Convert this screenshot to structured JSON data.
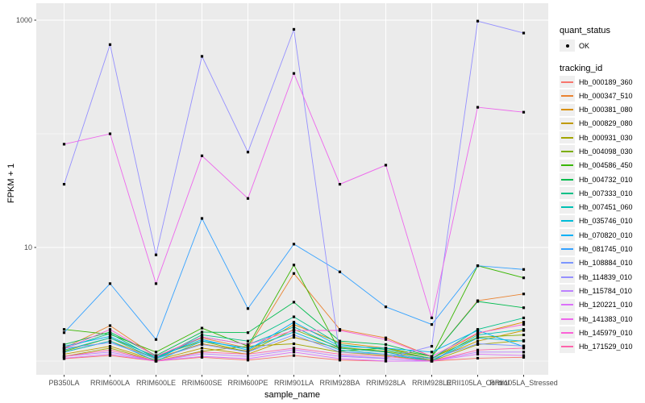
{
  "chart_data": {
    "type": "line",
    "xlabel": "sample_name",
    "ylabel": "FPKM + 1",
    "y_scale": "log10",
    "y_ticks": [
      10,
      1000
    ],
    "y_minor_gridlines": [
      1,
      100
    ],
    "ylim_log10": [
      -0.12,
      3.15
    ],
    "grid": "on",
    "legend_position": "right",
    "panel_bg": "#EBEBEB",
    "grid_color": "#FFFFFF",
    "point_color": "#000000",
    "tick_label_color": "#4D4D4D",
    "categories": [
      "PB350LA",
      "RRIM600LA",
      "RRIM600LE",
      "RRIM600SE",
      "RRIM600PE",
      "RRIM901LA",
      "RRIM928BA",
      "RRIM928LA",
      "RRIM928LE",
      "RRII105LA_Control",
      "RRII105LA_Stressed"
    ],
    "series": [
      {
        "name": "Hb_000189_360",
        "color": "#F8766D",
        "values": [
          1.05,
          1.12,
          1.0,
          1.08,
          1.02,
          1.12,
          1.02,
          1.0,
          1.0,
          1.06,
          1.08
        ]
      },
      {
        "name": "Hb_000347_510",
        "color": "#EA8331",
        "values": [
          1.3,
          2.05,
          1.1,
          1.6,
          1.3,
          5.9,
          1.9,
          1.6,
          1.1,
          3.4,
          3.9
        ]
      },
      {
        "name": "Hb_000381_080",
        "color": "#D89000",
        "values": [
          1.2,
          1.5,
          1.06,
          1.42,
          1.22,
          2.1,
          1.45,
          1.3,
          1.05,
          1.75,
          2.2
        ]
      },
      {
        "name": "Hb_000829_080",
        "color": "#C09B00",
        "values": [
          1.15,
          1.35,
          1.02,
          1.3,
          1.15,
          1.62,
          1.3,
          1.2,
          1.02,
          1.5,
          1.86
        ]
      },
      {
        "name": "Hb_000931_030",
        "color": "#A3A500",
        "values": [
          1.1,
          1.3,
          1.0,
          1.22,
          1.35,
          1.42,
          1.2,
          1.12,
          1.0,
          1.4,
          1.52
        ]
      },
      {
        "name": "Hb_004098_030",
        "color": "#7CAE00",
        "values": [
          1.22,
          1.6,
          1.1,
          1.5,
          1.2,
          1.9,
          1.32,
          1.22,
          1.06,
          1.62,
          1.7
        ]
      },
      {
        "name": "Hb_004586_450",
        "color": "#39B600",
        "values": [
          1.9,
          1.72,
          1.2,
          1.95,
          1.35,
          7.0,
          1.22,
          1.3,
          1.1,
          6.9,
          5.4
        ]
      },
      {
        "name": "Hb_004732_010",
        "color": "#00BB4E",
        "values": [
          1.4,
          1.8,
          1.12,
          1.8,
          1.78,
          3.3,
          1.5,
          1.4,
          1.1,
          3.35,
          2.95
        ]
      },
      {
        "name": "Hb_007333_010",
        "color": "#00C087",
        "values": [
          1.3,
          1.75,
          1.05,
          1.7,
          1.5,
          2.45,
          1.4,
          1.26,
          1.05,
          1.9,
          2.4
        ]
      },
      {
        "name": "Hb_007451_060",
        "color": "#00C0B4",
        "values": [
          1.25,
          1.6,
          1.04,
          1.63,
          1.4,
          2.0,
          1.3,
          1.2,
          1.0,
          1.7,
          1.9
        ]
      },
      {
        "name": "Hb_035746_010",
        "color": "#00BCD8",
        "values": [
          1.2,
          1.5,
          1.0,
          1.5,
          1.3,
          1.8,
          1.25,
          1.15,
          1.0,
          1.6,
          1.5
        ]
      },
      {
        "name": "Hb_070820_010",
        "color": "#00B0F6",
        "values": [
          1.35,
          1.65,
          1.08,
          1.55,
          1.25,
          2.2,
          1.35,
          1.3,
          1.2,
          1.86,
          1.34
        ]
      },
      {
        "name": "Hb_081745_010",
        "color": "#35A2FF",
        "values": [
          1.78,
          4.8,
          1.55,
          18,
          2.9,
          10.7,
          6.1,
          3.0,
          2.1,
          6.9,
          6.4
        ]
      },
      {
        "name": "Hb_108884_010",
        "color": "#7C96FF",
        "values": [
          1.3,
          1.45,
          1.05,
          1.4,
          1.2,
          1.7,
          1.2,
          1.15,
          1.05,
          1.42,
          1.36
        ]
      },
      {
        "name": "Hb_114839_010",
        "color": "#9590FF",
        "values": [
          36,
          610,
          8.6,
          480,
          69,
          830,
          1.12,
          1.06,
          1.35,
          980,
          770
        ]
      },
      {
        "name": "Hb_115784_010",
        "color": "#BC81FF",
        "values": [
          1.1,
          1.2,
          1.0,
          1.16,
          1.1,
          1.26,
          1.1,
          1.05,
          1.0,
          1.2,
          1.2
        ]
      },
      {
        "name": "Hb_120221_010",
        "color": "#DC71FA",
        "values": [
          1.06,
          1.15,
          1.0,
          1.1,
          1.05,
          1.2,
          1.05,
          1.0,
          1.0,
          1.15,
          1.12
        ]
      },
      {
        "name": "Hb_141383_010",
        "color": "#ED68EC",
        "values": [
          81,
          100,
          4.8,
          64,
          27,
          340,
          36,
          53,
          2.4,
          171,
          155
        ]
      },
      {
        "name": "Hb_145979_010",
        "color": "#FB61D7",
        "values": [
          1.28,
          1.9,
          1.1,
          1.63,
          1.4,
          1.86,
          1.86,
          1.55,
          1.1,
          1.77,
          2.1
        ]
      },
      {
        "name": "Hb_171529_010",
        "color": "#FF65AC",
        "values": [
          1.1,
          1.25,
          1.0,
          1.2,
          1.15,
          1.3,
          1.15,
          1.1,
          1.0,
          1.25,
          1.3
        ]
      }
    ]
  },
  "legend": {
    "quant_status_title": "quant_status",
    "quant_status_items": [
      {
        "label": "OK",
        "marker": "black-point",
        "color": "#000000"
      }
    ],
    "tracking_id_title": "tracking_id"
  }
}
